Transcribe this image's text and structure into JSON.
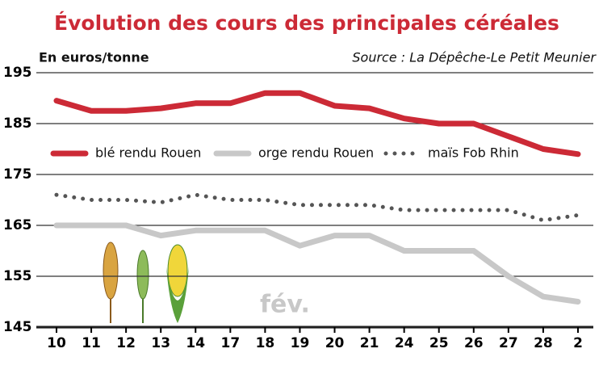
{
  "chart_data": {
    "type": "line",
    "title": "Évolution des cours des principales céréales",
    "subtitle": "En euros/tonne",
    "source": "Source : La Dépêche-Le Petit Meunier",
    "annotation": "fév.",
    "categories": [
      "10",
      "11",
      "12",
      "13",
      "14",
      "17",
      "18",
      "19",
      "20",
      "21",
      "24",
      "25",
      "26",
      "27",
      "28",
      "2"
    ],
    "series": [
      {
        "name": "blé rendu Rouen",
        "color": "#cc2a36",
        "linestyle": "solid",
        "values": [
          189.5,
          187.5,
          187.5,
          188,
          189,
          189,
          191,
          191,
          188.5,
          188,
          186,
          185,
          185,
          182.5,
          180,
          179
        ]
      },
      {
        "name": "orge rendu Rouen",
        "color": "#c8c8c8",
        "linestyle": "solid",
        "values": [
          165,
          165,
          165,
          163,
          164,
          164,
          164,
          161,
          163,
          163,
          160,
          160,
          160,
          155,
          151,
          150
        ]
      },
      {
        "name": "maïs Fob Rhin",
        "color": "#555555",
        "linestyle": "dotted",
        "values": [
          171,
          170,
          170,
          169.5,
          171,
          170,
          170,
          169,
          169,
          169,
          168,
          168,
          168,
          168,
          166,
          167
        ]
      }
    ],
    "ylim": [
      145,
      195
    ],
    "yticks": [
      145,
      155,
      165,
      175,
      185,
      195
    ],
    "grid": true
  }
}
